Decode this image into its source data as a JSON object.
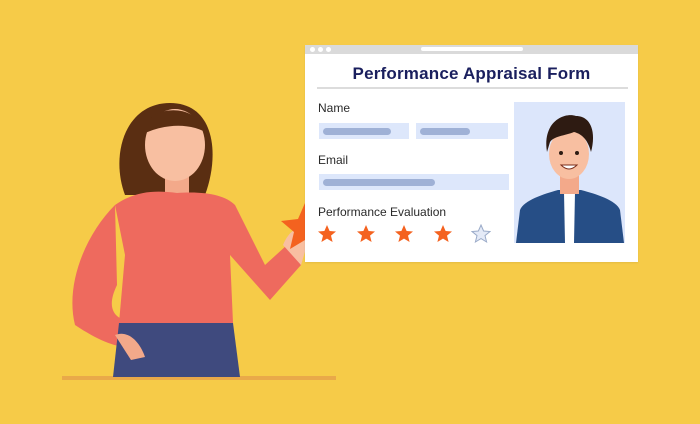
{
  "form": {
    "title": "Performance Appraisal Form",
    "name_label": "Name",
    "email_label": "Email",
    "evaluation_label": "Performance Evaluation",
    "rating": 4,
    "rating_max": 5
  },
  "colors": {
    "background": "#F6CB48",
    "title": "#1A1F5E",
    "star_filled": "#F4621F",
    "star_empty": "#E4EAF7",
    "field": "#DDE7FB"
  }
}
